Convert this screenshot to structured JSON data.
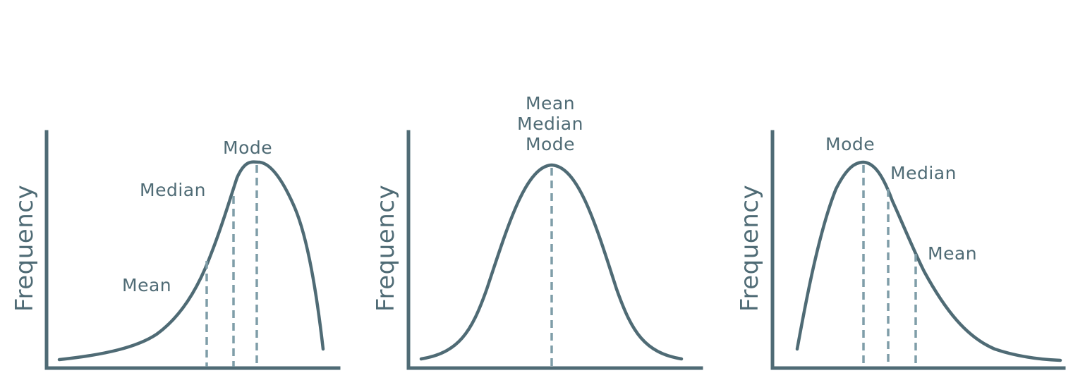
{
  "panels": [
    {
      "ylabel": "Frequency",
      "labels": {
        "mean": "Mean",
        "median": "Median",
        "mode": "Mode"
      }
    },
    {
      "ylabel": "Frequency",
      "labels": {
        "mean": "Mean",
        "median": "Median",
        "mode": "Mode"
      }
    },
    {
      "ylabel": "Frequency",
      "labels": {
        "mean": "Mean",
        "median": "Median",
        "mode": "Mode"
      }
    }
  ],
  "colors": {
    "line": "#4f6b75",
    "dashed": "#7f9da8",
    "background": "#ffffff"
  }
}
